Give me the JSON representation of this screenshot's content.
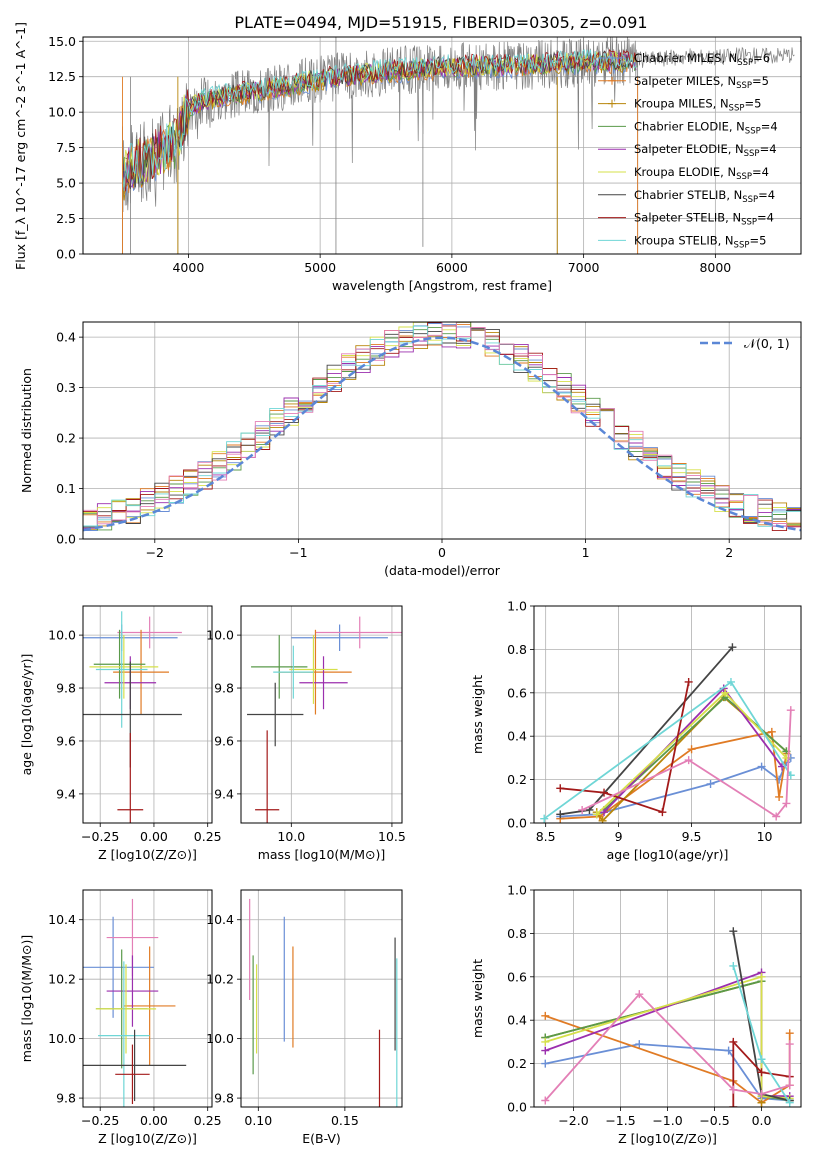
{
  "figure_title": "PLATE=0494, MJD=51915, FIBERID=0305, z=0.091",
  "legend_entries": [
    {
      "name": "Chabrier MILES",
      "nssp": "6",
      "color": "#6a8fd6"
    },
    {
      "name": "Salpeter MILES",
      "nssp": "5",
      "color": "#e07b25"
    },
    {
      "name": "Kroupa MILES",
      "nssp": "5",
      "color": "#b8860b"
    },
    {
      "name": "Chabrier ELODIE",
      "nssp": "4",
      "color": "#5a9a4a"
    },
    {
      "name": "Salpeter ELODIE",
      "nssp": "4",
      "color": "#9b2fae"
    },
    {
      "name": "Kroupa ELODIE",
      "nssp": "4",
      "color": "#d6e04a"
    },
    {
      "name": "Chabrier STELIB",
      "nssp": "4",
      "color": "#444444"
    },
    {
      "name": "Salpeter STELIB",
      "nssp": "4",
      "color": "#a31a1a"
    },
    {
      "name": "Kroupa STELIB",
      "nssp": "5",
      "color": "#6fd6d6"
    }
  ],
  "extra_colors": {
    "pink": "#e37fb6",
    "data": "#808080",
    "normal": "#5b87d6",
    "grid": "#b0b0b0"
  },
  "chart_data": [
    {
      "id": "spectrum",
      "type": "line",
      "xlabel": "wavelength [Angstrom, rest frame]",
      "ylabel": "Flux [f_λ 10^-17 erg cm^-2 s^-1 A^-1]",
      "xlim": [
        3200,
        8650
      ],
      "ylim": [
        0,
        15.3
      ],
      "xticks": [
        4000,
        5000,
        6000,
        7000,
        8000
      ],
      "yticks": [
        0.0,
        2.5,
        5.0,
        7.5,
        10.0,
        12.5,
        15.0
      ],
      "model_continuum": {
        "x": [
          3500,
          3550,
          3600,
          3700,
          3800,
          3900,
          4000,
          4100,
          4200,
          4400,
          4600,
          5000,
          5500,
          6000,
          6500,
          7000,
          7400
        ],
        "y": [
          5.5,
          6.0,
          6.3,
          6.6,
          7.3,
          7.8,
          10.2,
          10.8,
          11.0,
          11.3,
          11.6,
          12.3,
          12.9,
          13.2,
          13.3,
          13.5,
          13.6
        ]
      },
      "data_extension": {
        "x": [
          7400,
          7600,
          7800,
          8000,
          8200,
          8400,
          8600
        ],
        "y": [
          13.7,
          13.8,
          13.9,
          13.9,
          14.0,
          14.0,
          14.1
        ]
      },
      "grid": true,
      "legend": "right"
    },
    {
      "id": "residuals",
      "type": "step",
      "xlabel": "(data-model)/error",
      "ylabel": "Normed distribution",
      "xlim": [
        -2.5,
        2.5
      ],
      "ylim": [
        0,
        0.43
      ],
      "xticks": [
        -2,
        -1,
        0,
        1,
        2
      ],
      "yticks": [
        0.0,
        0.1,
        0.2,
        0.3,
        0.4
      ],
      "normal_curve": {
        "label": "𝒩(0, 1)",
        "mean": 0,
        "sd": 1
      },
      "bin_width": 0.1,
      "grid": true,
      "legend": "top-right"
    },
    {
      "id": "age_vs_Z",
      "type": "errorbar",
      "xlabel": "Z [log10(Z/Z⊙)]",
      "ylabel": "age [log10(age/yr)]",
      "xlim": [
        -0.33,
        0.27
      ],
      "ylim": [
        9.29,
        10.11
      ],
      "xticks": [
        -0.25,
        0.0,
        0.25
      ],
      "xticklabels": [
        "−0.25",
        "0.00",
        "0.25"
      ],
      "yticks": [
        9.4,
        9.6,
        9.8,
        10.0
      ],
      "points": [
        {
          "x": -0.15,
          "y": 9.99,
          "xerr": 0.26,
          "yerr": 0.05,
          "c": "#6a8fd6"
        },
        {
          "x": -0.02,
          "y": 10.01,
          "xerr": 0.15,
          "yerr": 0.06,
          "c": "#e37fb6"
        },
        {
          "x": -0.06,
          "y": 9.86,
          "xerr": 0.13,
          "yerr": 0.16,
          "c": "#e07b25"
        },
        {
          "x": -0.11,
          "y": 9.82,
          "xerr": 0.12,
          "yerr": 0.1,
          "c": "#9b2fae"
        },
        {
          "x": -0.16,
          "y": 9.89,
          "xerr": 0.12,
          "yerr": 0.13,
          "c": "#5a9a4a"
        },
        {
          "x": -0.14,
          "y": 9.88,
          "xerr": 0.16,
          "yerr": 0.12,
          "c": "#d6e04a"
        },
        {
          "x": -0.15,
          "y": 9.87,
          "xerr": 0.12,
          "yerr": 0.22,
          "c": "#6fd6d6"
        },
        {
          "x": -0.11,
          "y": 9.7,
          "xerr": 0.24,
          "yerr": 0.2,
          "c": "#444444"
        },
        {
          "x": -0.11,
          "y": 9.34,
          "xerr": 0.06,
          "yerr": 0.29,
          "c": "#a31a1a"
        }
      ]
    },
    {
      "id": "age_vs_mass",
      "type": "errorbar",
      "xlabel": "mass [log10(M/M⊙)]",
      "ylabel": "",
      "xlim": [
        9.75,
        10.55
      ],
      "ylim": [
        9.29,
        10.11
      ],
      "xticks": [
        10.0,
        10.5
      ],
      "xticklabels": [
        "10.0",
        "10.5"
      ],
      "yticks": [
        9.4,
        9.6,
        9.8,
        10.0
      ],
      "points": [
        {
          "x": 10.24,
          "y": 9.99,
          "xerr": 0.24,
          "yerr": 0.05,
          "c": "#6a8fd6"
        },
        {
          "x": 10.34,
          "y": 10.01,
          "xerr": 0.22,
          "yerr": 0.06,
          "c": "#e37fb6"
        },
        {
          "x": 10.12,
          "y": 9.86,
          "xerr": 0.18,
          "yerr": 0.16,
          "c": "#e07b25"
        },
        {
          "x": 10.16,
          "y": 9.82,
          "xerr": 0.12,
          "yerr": 0.1,
          "c": "#9b2fae"
        },
        {
          "x": 9.94,
          "y": 9.88,
          "xerr": 0.14,
          "yerr": 0.12,
          "c": "#5a9a4a"
        },
        {
          "x": 10.11,
          "y": 9.87,
          "xerr": 0.12,
          "yerr": 0.13,
          "c": "#d6e04a"
        },
        {
          "x": 10.01,
          "y": 9.86,
          "xerr": 0.1,
          "yerr": 0.1,
          "c": "#6fd6d6"
        },
        {
          "x": 9.92,
          "y": 9.7,
          "xerr": 0.14,
          "yerr": 0.12,
          "c": "#444444"
        },
        {
          "x": 9.88,
          "y": 9.34,
          "xerr": 0.06,
          "yerr": 0.3,
          "c": "#a31a1a"
        }
      ]
    },
    {
      "id": "mass_weight_vs_age",
      "type": "line",
      "xlabel": "age [log10(age/yr)]",
      "ylabel": "mass weight",
      "xlim": [
        8.42,
        10.25
      ],
      "ylim": [
        0,
        1
      ],
      "xticks": [
        8.5,
        9.0,
        9.5,
        10.0
      ],
      "yticks": [
        0.0,
        0.2,
        0.4,
        0.6,
        0.8,
        1.0
      ],
      "series": [
        {
          "c": "#6a8fd6",
          "x": [
            8.6,
            8.85,
            9.63,
            9.98,
            10.1,
            10.15,
            10.18
          ],
          "y": [
            0.03,
            0.04,
            0.18,
            0.26,
            0.2,
            0.28,
            0.3
          ]
        },
        {
          "c": "#e07b25",
          "x": [
            8.6,
            8.87,
            9.5,
            10.05,
            10.1,
            10.15
          ],
          "y": [
            0.02,
            0.03,
            0.34,
            0.42,
            0.12,
            0.32
          ]
        },
        {
          "c": "#b8860b",
          "x": [
            8.85,
            8.89,
            9.72,
            10.15
          ],
          "y": [
            0.05,
            0.01,
            0.58,
            0.33
          ]
        },
        {
          "c": "#5a9a4a",
          "x": [
            8.9,
            9.73,
            10.15
          ],
          "y": [
            0.06,
            0.58,
            0.33
          ]
        },
        {
          "c": "#9b2fae",
          "x": [
            8.9,
            9.72,
            10.12
          ],
          "y": [
            0.05,
            0.62,
            0.26
          ]
        },
        {
          "c": "#d6e04a",
          "x": [
            8.85,
            9.73,
            10.15
          ],
          "y": [
            0.04,
            0.6,
            0.3
          ]
        },
        {
          "c": "#444444",
          "x": [
            8.6,
            8.8,
            9.78
          ],
          "y": [
            0.04,
            0.06,
            0.81
          ]
        },
        {
          "c": "#a31a1a",
          "x": [
            8.6,
            8.9,
            9.3,
            9.48
          ],
          "y": [
            0.16,
            0.14,
            0.05,
            0.65
          ]
        },
        {
          "c": "#6fd6d6",
          "x": [
            8.49,
            9.77,
            10.18
          ],
          "y": [
            0.02,
            0.65,
            0.22
          ]
        },
        {
          "c": "#e37fb6",
          "x": [
            8.75,
            9.48,
            10.08,
            10.15,
            10.18
          ],
          "y": [
            0.06,
            0.29,
            0.03,
            0.09,
            0.52
          ]
        }
      ]
    },
    {
      "id": "mass_vs_Z",
      "type": "errorbar",
      "xlabel": "Z [log10(Z/Z⊙)]",
      "ylabel": "mass [log10(M/M⊙)]",
      "xlim": [
        -0.33,
        0.27
      ],
      "ylim": [
        9.77,
        10.5
      ],
      "xticks": [
        -0.25,
        0.0,
        0.25
      ],
      "xticklabels": [
        "−0.25",
        "0.00",
        "0.25"
      ],
      "yticks": [
        9.8,
        10.0,
        10.2,
        10.4
      ],
      "points": [
        {
          "x": -0.19,
          "y": 10.24,
          "xerr": 0.19,
          "yerr": 0.17,
          "c": "#6a8fd6"
        },
        {
          "x": -0.1,
          "y": 10.34,
          "xerr": 0.12,
          "yerr": 0.13,
          "c": "#e37fb6"
        },
        {
          "x": -0.02,
          "y": 10.11,
          "xerr": 0.12,
          "yerr": 0.2,
          "c": "#e07b25"
        },
        {
          "x": -0.1,
          "y": 10.16,
          "xerr": 0.12,
          "yerr": 0.12,
          "c": "#9b2fae"
        },
        {
          "x": -0.15,
          "y": 10.1,
          "xerr": 0.12,
          "yerr": 0.2,
          "c": "#5a9a4a"
        },
        {
          "x": -0.13,
          "y": 10.1,
          "xerr": 0.14,
          "yerr": 0.15,
          "c": "#d6e04a"
        },
        {
          "x": -0.14,
          "y": 10.01,
          "xerr": 0.12,
          "yerr": 0.25,
          "c": "#6fd6d6"
        },
        {
          "x": -0.09,
          "y": 9.91,
          "xerr": 0.24,
          "yerr": 0.12,
          "c": "#444444"
        },
        {
          "x": -0.1,
          "y": 9.88,
          "xerr": 0.08,
          "yerr": 0.1,
          "c": "#a31a1a"
        }
      ]
    },
    {
      "id": "mass_vs_ebv",
      "type": "errorbar",
      "xlabel": "E(B-V)",
      "ylabel": "",
      "xlim": [
        0.09,
        0.183
      ],
      "ylim": [
        9.77,
        10.5
      ],
      "xticks": [
        0.1,
        0.15
      ],
      "xticklabels": [
        "0.10",
        "0.15"
      ],
      "yticks": [
        9.8,
        10.0,
        10.2,
        10.4
      ],
      "points": [
        {
          "x": 0.095,
          "y": 10.3,
          "xerr": 0,
          "yerr": 0.17,
          "c": "#e37fb6"
        },
        {
          "x": 0.097,
          "y": 10.08,
          "xerr": 0,
          "yerr": 0.2,
          "c": "#5a9a4a"
        },
        {
          "x": 0.099,
          "y": 10.1,
          "xerr": 0,
          "yerr": 0.15,
          "c": "#d6e04a"
        },
        {
          "x": 0.115,
          "y": 10.2,
          "xerr": 0,
          "yerr": 0.21,
          "c": "#6a8fd6"
        },
        {
          "x": 0.12,
          "y": 10.14,
          "xerr": 0,
          "yerr": 0.17,
          "c": "#e07b25"
        },
        {
          "x": 0.17,
          "y": 9.86,
          "xerr": 0,
          "yerr": 0.17,
          "c": "#a31a1a"
        },
        {
          "x": 0.179,
          "y": 10.15,
          "xerr": 0,
          "yerr": 0.19,
          "c": "#444444"
        },
        {
          "x": 0.18,
          "y": 10.0,
          "xerr": 0,
          "yerr": 0.27,
          "c": "#6fd6d6"
        }
      ]
    },
    {
      "id": "mass_weight_vs_Z",
      "type": "line",
      "xlabel": "Z [log10(Z/Z⊙)]",
      "ylabel": "mass weight",
      "xlim": [
        -2.42,
        0.42
      ],
      "ylim": [
        0,
        1
      ],
      "xticks": [
        -2.0,
        -1.5,
        -1.0,
        -0.5,
        0.0
      ],
      "xticklabels": [
        "−2.0",
        "−1.5",
        "−1.0",
        "−0.5",
        "0.0"
      ],
      "yticks": [
        0.0,
        0.2,
        0.4,
        0.6,
        0.8,
        1.0
      ],
      "series": [
        {
          "c": "#6a8fd6",
          "x": [
            -2.3,
            -1.3,
            -0.35,
            0.0,
            0.3
          ],
          "y": [
            0.2,
            0.29,
            0.26,
            0.04,
            0.03
          ]
        },
        {
          "c": "#e07b25",
          "x": [
            -2.3,
            -0.3,
            0.0,
            0.3,
            0.3
          ],
          "y": [
            0.42,
            0.12,
            0.02,
            0.1,
            0.34
          ]
        },
        {
          "c": "#b8860b",
          "x": [
            -2.3,
            0.0,
            0.0
          ],
          "y": [
            0.32,
            0.58,
            0.02
          ]
        },
        {
          "c": "#5a9a4a",
          "x": [
            -2.3,
            0.0,
            0.0,
            0.3
          ],
          "y": [
            0.32,
            0.58,
            0.05,
            0.03
          ]
        },
        {
          "c": "#9b2fae",
          "x": [
            -2.3,
            0.0,
            0.0,
            0.3
          ],
          "y": [
            0.26,
            0.62,
            0.05,
            0.05
          ]
        },
        {
          "c": "#d6e04a",
          "x": [
            -2.3,
            0.0,
            0.0,
            0.3
          ],
          "y": [
            0.3,
            0.6,
            0.05,
            0.04
          ]
        },
        {
          "c": "#444444",
          "x": [
            -0.3,
            0.0,
            0.3
          ],
          "y": [
            0.81,
            0.06,
            0.03
          ]
        },
        {
          "c": "#a31a1a",
          "x": [
            -0.3,
            -0.3,
            0.0,
            0.3
          ],
          "y": [
            0.0,
            0.3,
            0.16,
            0.14
          ]
        },
        {
          "c": "#6fd6d6",
          "x": [
            -0.3,
            0.0,
            0.3
          ],
          "y": [
            0.65,
            0.22,
            0.02
          ]
        },
        {
          "c": "#e37fb6",
          "x": [
            -2.3,
            -1.3,
            -0.3,
            0.0,
            0.3,
            0.3
          ],
          "y": [
            0.03,
            0.52,
            0.08,
            0.06,
            0.1,
            0.29
          ]
        }
      ]
    }
  ]
}
